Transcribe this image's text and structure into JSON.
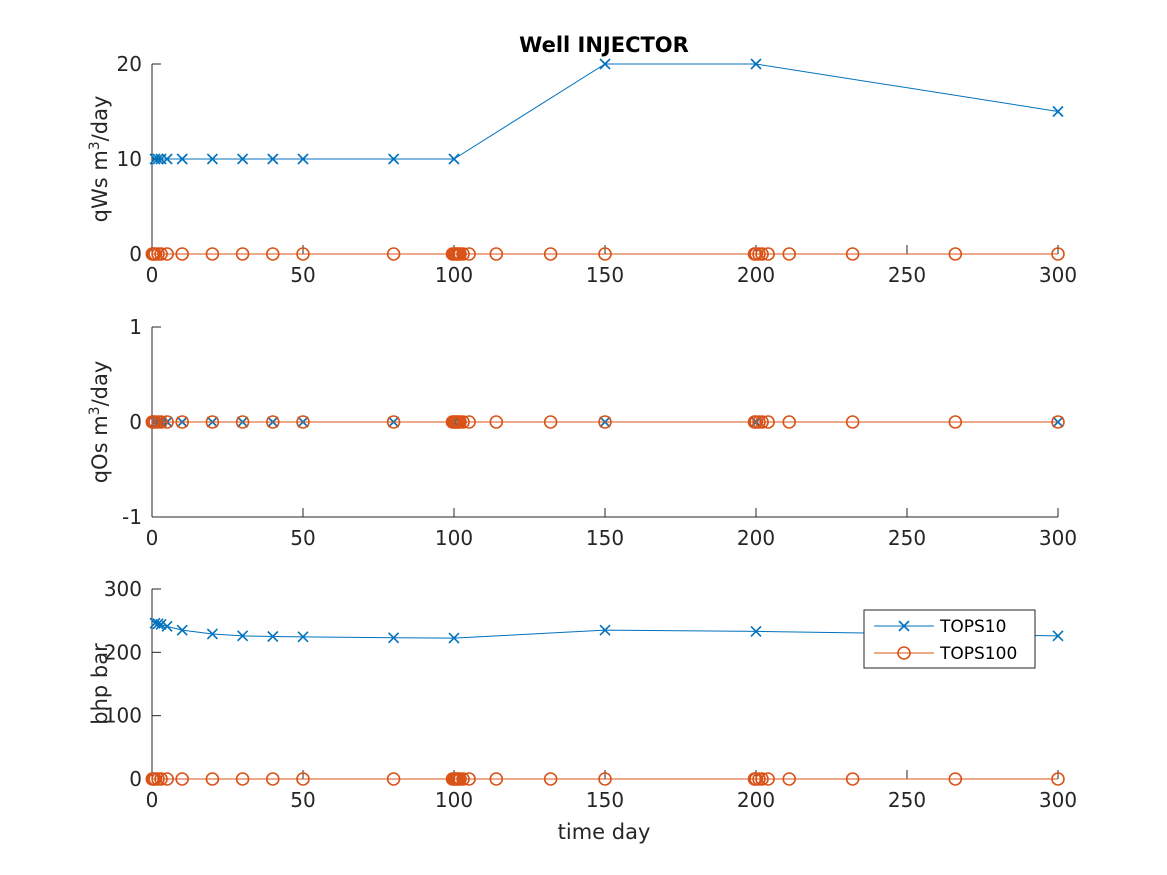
{
  "chart_data": {
    "type": "line",
    "title": "Well INJECTOR",
    "xlabel": "time day",
    "xlim": [
      0,
      300
    ],
    "xticks": [
      "0",
      "50",
      "100",
      "150",
      "200",
      "250",
      "300"
    ],
    "legend": {
      "placement": "right",
      "entries": [
        {
          "name": "TOPS10",
          "marker": "x",
          "color": "#0072BD"
        },
        {
          "name": "TOPS100",
          "marker": "o",
          "color": "#D95319"
        }
      ]
    },
    "subplots": [
      {
        "id": "qws",
        "ylabel_main": "qWs m",
        "ylabel_sup": "3",
        "ylabel_tail": "/day",
        "ylim": [
          0,
          20
        ],
        "yticks": [
          "0",
          "10",
          "20"
        ],
        "series": [
          {
            "name": "TOPS10",
            "marker": "x",
            "color": "#0072BD",
            "x": [
              1,
              2,
              3,
              5,
              10,
              20,
              30,
              40,
              50,
              80,
              100,
              150,
              200,
              300
            ],
            "y": [
              10,
              10,
              10,
              10,
              10,
              10,
              10,
              10,
              10,
              10,
              10,
              20,
              20,
              15
            ]
          },
          {
            "name": "TOPS100",
            "marker": "o",
            "color": "#D95319",
            "x": [
              0.1,
              0.5,
              1,
              2,
              3,
              5,
              10,
              20,
              30,
              40,
              50,
              80,
              99.5,
              100,
              100.5,
              101,
              101.5,
              102,
              103,
              105,
              114,
              132,
              150,
              199.5,
              200,
              201,
              202,
              204,
              211,
              232,
              266,
              300
            ],
            "y": [
              0,
              0,
              0,
              0,
              0,
              0,
              0,
              0,
              0,
              0,
              0,
              0,
              0,
              0,
              0,
              0,
              0,
              0,
              0,
              0,
              0,
              0,
              0,
              0,
              0,
              0,
              0,
              0,
              0,
              0,
              0,
              0
            ]
          }
        ]
      },
      {
        "id": "qos",
        "ylabel_main": "qOs m",
        "ylabel_sup": "3",
        "ylabel_tail": "/day",
        "ylim": [
          -1,
          1
        ],
        "yticks": [
          "-1",
          "0",
          "1"
        ],
        "series": [
          {
            "name": "TOPS10",
            "marker": "x",
            "color": "#0072BD",
            "x": [
              1,
              2,
              3,
              5,
              10,
              20,
              30,
              40,
              50,
              80,
              100,
              150,
              200,
              300
            ],
            "y": [
              0,
              0,
              0,
              0,
              0,
              0,
              0,
              0,
              0,
              0,
              0,
              0,
              0,
              0
            ]
          },
          {
            "name": "TOPS100",
            "marker": "o",
            "color": "#D95319",
            "x": [
              0.1,
              0.5,
              1,
              2,
              3,
              5,
              10,
              20,
              30,
              40,
              50,
              80,
              99.5,
              100,
              100.5,
              101,
              101.5,
              102,
              103,
              105,
              114,
              132,
              150,
              199.5,
              200,
              201,
              202,
              204,
              211,
              232,
              266,
              300
            ],
            "y": [
              0,
              0,
              0,
              0,
              0,
              0,
              0,
              0,
              0,
              0,
              0,
              0,
              0,
              0,
              0,
              0,
              0,
              0,
              0,
              0,
              0,
              0,
              0,
              0,
              0,
              0,
              0,
              0,
              0,
              0,
              0,
              0
            ]
          }
        ]
      },
      {
        "id": "bhp",
        "ylabel_main": "bhp bar",
        "ylabel_sup": "",
        "ylabel_tail": "",
        "ylim": [
          0,
          300
        ],
        "yticks": [
          "0",
          "100",
          "200",
          "300"
        ],
        "show_xlabel": true,
        "show_legend": true,
        "series": [
          {
            "name": "TOPS10",
            "marker": "x",
            "color": "#0072BD",
            "x": [
              1,
              2,
              3,
              5,
              10,
              20,
              30,
              40,
              50,
              80,
              100,
              150,
              200,
              300
            ],
            "y": [
              246,
              245,
              244,
              241,
              235,
              229,
              226,
              225,
              224.5,
              223,
              222.5,
              235,
              233,
              226
            ]
          },
          {
            "name": "TOPS100",
            "marker": "o",
            "color": "#D95319",
            "x": [
              0.1,
              0.5,
              1,
              2,
              3,
              5,
              10,
              20,
              30,
              40,
              50,
              80,
              99.5,
              100,
              100.5,
              101,
              101.5,
              102,
              103,
              105,
              114,
              132,
              150,
              199.5,
              200,
              201,
              202,
              204,
              211,
              232,
              266,
              300
            ],
            "y": [
              0,
              0,
              0,
              0,
              0,
              0,
              0,
              0,
              0,
              0,
              0,
              0,
              0,
              0,
              0,
              0,
              0,
              0,
              0,
              0,
              0,
              0,
              0,
              0,
              0,
              0,
              0,
              0,
              0,
              0,
              0,
              0
            ]
          }
        ]
      }
    ]
  }
}
